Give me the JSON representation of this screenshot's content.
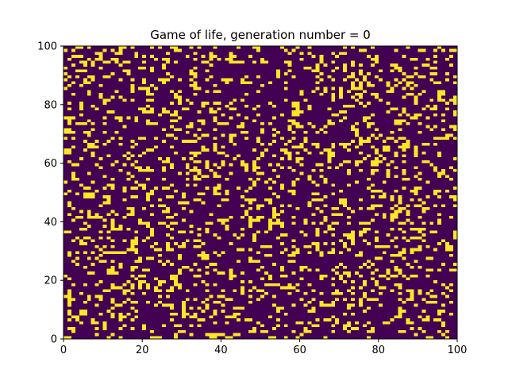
{
  "figure": {
    "title": "Game of life, generation number = 0"
  },
  "game": {
    "generation": 0,
    "grid_size": 100,
    "dead_color": "#440154",
    "alive_color": "#fde725",
    "alive_density": 0.2,
    "seed": 7
  },
  "axes": {
    "xlim": [
      0,
      100
    ],
    "ylim": [
      0,
      100
    ],
    "x_ticks": [
      {
        "value": 0,
        "label": "0"
      },
      {
        "value": 20,
        "label": "20"
      },
      {
        "value": 40,
        "label": "40"
      },
      {
        "value": 60,
        "label": "60"
      },
      {
        "value": 80,
        "label": "80"
      },
      {
        "value": 100,
        "label": "100"
      }
    ],
    "y_ticks": [
      {
        "value": 0,
        "label": "0"
      },
      {
        "value": 20,
        "label": "20"
      },
      {
        "value": 40,
        "label": "40"
      },
      {
        "value": 60,
        "label": "60"
      },
      {
        "value": 80,
        "label": "80"
      },
      {
        "value": 100,
        "label": "100"
      }
    ],
    "grid": false
  }
}
